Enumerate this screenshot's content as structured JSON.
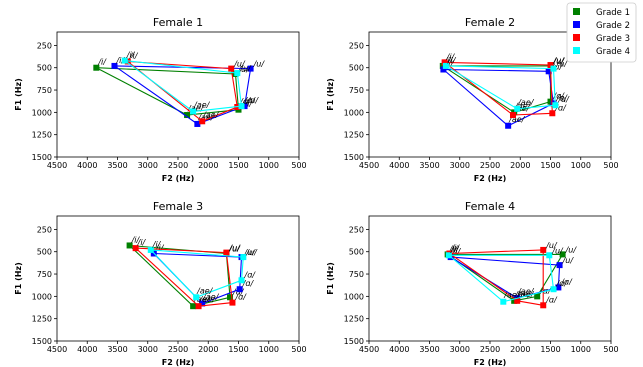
{
  "legend": {
    "items": [
      {
        "name": "Grade 1",
        "color": "#008000"
      },
      {
        "name": "Grade 2",
        "color": "#0000ff"
      },
      {
        "name": "Grade 3",
        "color": "#ff0000"
      },
      {
        "name": "Grade 4",
        "color": "#00ffff"
      }
    ]
  },
  "chart_data": [
    {
      "type": "scatter",
      "title": "Female 1",
      "xlabel": "F2 (Hz)",
      "ylabel": "F1 (Hz)",
      "xlim": [
        4500,
        500
      ],
      "ylim": [
        1500,
        100
      ],
      "xticks": [
        4500,
        4000,
        3500,
        3000,
        2500,
        2000,
        1500,
        1000,
        500
      ],
      "yticks": [
        250,
        500,
        750,
        1000,
        1250,
        1500
      ],
      "series": [
        {
          "name": "Grade 1",
          "color": "#008000",
          "points": [
            {
              "label": "/i/",
              "x": 3850,
              "y": 500
            },
            {
              "label": "/u/",
              "x": 1550,
              "y": 570
            },
            {
              "label": "/ɑ/",
              "x": 1500,
              "y": 970
            },
            {
              "label": "/ae/",
              "x": 2350,
              "y": 1030
            }
          ]
        },
        {
          "name": "Grade 2",
          "color": "#0000ff",
          "points": [
            {
              "label": "/i/",
              "x": 3550,
              "y": 480
            },
            {
              "label": "/u/",
              "x": 1300,
              "y": 510
            },
            {
              "label": "/ɑ/",
              "x": 1400,
              "y": 930
            },
            {
              "label": "/ae/",
              "x": 2180,
              "y": 1130
            }
          ]
        },
        {
          "name": "Grade 3",
          "color": "#ff0000",
          "points": [
            {
              "label": "/i/",
              "x": 3330,
              "y": 430
            },
            {
              "label": "/u/",
              "x": 1620,
              "y": 510
            },
            {
              "label": "/ɑ/",
              "x": 1520,
              "y": 940
            },
            {
              "label": "/ae/",
              "x": 2100,
              "y": 1100
            }
          ]
        },
        {
          "name": "Grade 4",
          "color": "#00ffff",
          "points": [
            {
              "label": "/i/",
              "x": 3380,
              "y": 420
            },
            {
              "label": "/u/",
              "x": 1520,
              "y": 560
            },
            {
              "label": "/ɑ/",
              "x": 1450,
              "y": 930
            },
            {
              "label": "/ae/",
              "x": 2250,
              "y": 990
            }
          ]
        }
      ]
    },
    {
      "type": "scatter",
      "title": "Female 2",
      "xlabel": "F2 (Hz)",
      "ylabel": "F1 (Hz)",
      "xlim": [
        4500,
        500
      ],
      "ylim": [
        1500,
        100
      ],
      "xticks": [
        4500,
        4000,
        3500,
        3000,
        2500,
        2000,
        1500,
        1000,
        500
      ],
      "yticks": [
        250,
        500,
        750,
        1000,
        1250,
        1500
      ],
      "series": [
        {
          "name": "Grade 1",
          "color": "#008000",
          "points": [
            {
              "label": "/i/",
              "x": 3280,
              "y": 480
            },
            {
              "label": "/u/",
              "x": 1500,
              "y": 480
            },
            {
              "label": "/ɑ/",
              "x": 1500,
              "y": 880
            },
            {
              "label": "/ae/",
              "x": 2100,
              "y": 1000
            }
          ]
        },
        {
          "name": "Grade 2",
          "color": "#0000ff",
          "points": [
            {
              "label": "/i/",
              "x": 3270,
              "y": 520
            },
            {
              "label": "/u/",
              "x": 1530,
              "y": 540
            },
            {
              "label": "/ɑ/",
              "x": 1450,
              "y": 900
            },
            {
              "label": "/ae/",
              "x": 2200,
              "y": 1150
            }
          ]
        },
        {
          "name": "Grade 3",
          "color": "#ff0000",
          "points": [
            {
              "label": "/i/",
              "x": 3250,
              "y": 440
            },
            {
              "label": "/u/",
              "x": 1500,
              "y": 470
            },
            {
              "label": "/ɑ/",
              "x": 1470,
              "y": 1010
            },
            {
              "label": "/ae/",
              "x": 2120,
              "y": 1030
            }
          ]
        },
        {
          "name": "Grade 4",
          "color": "#00ffff",
          "points": [
            {
              "label": "/i/",
              "x": 3230,
              "y": 480
            },
            {
              "label": "/u/",
              "x": 1450,
              "y": 510
            },
            {
              "label": "/ɑ/",
              "x": 1420,
              "y": 920
            },
            {
              "label": "/ae/",
              "x": 2050,
              "y": 960
            }
          ]
        }
      ]
    },
    {
      "type": "scatter",
      "title": "Female 3",
      "xlabel": "F2 (Hz)",
      "ylabel": "F1 (Hz)",
      "xlim": [
        4500,
        500
      ],
      "ylim": [
        1500,
        100
      ],
      "xticks": [
        4500,
        4000,
        3500,
        3000,
        2500,
        2000,
        1500,
        1000,
        500
      ],
      "yticks": [
        250,
        500,
        750,
        1000,
        1250,
        1500
      ],
      "series": [
        {
          "name": "Grade 1",
          "color": "#008000",
          "points": [
            {
              "label": "/i/",
              "x": 3300,
              "y": 430
            },
            {
              "label": "/u/",
              "x": 1700,
              "y": 520
            },
            {
              "label": "/ɑ/",
              "x": 1640,
              "y": 1010
            },
            {
              "label": "/ae/",
              "x": 2250,
              "y": 1110
            }
          ]
        },
        {
          "name": "Grade 2",
          "color": "#0000ff",
          "points": [
            {
              "label": "/i/",
              "x": 2900,
              "y": 520
            },
            {
              "label": "/u/",
              "x": 1450,
              "y": 560
            },
            {
              "label": "/ɑ/",
              "x": 1480,
              "y": 920
            },
            {
              "label": "/ae/",
              "x": 2100,
              "y": 1080
            }
          ]
        },
        {
          "name": "Grade 3",
          "color": "#ff0000",
          "points": [
            {
              "label": "/i/",
              "x": 3200,
              "y": 460
            },
            {
              "label": "/u/",
              "x": 1700,
              "y": 510
            },
            {
              "label": "/ɑ/",
              "x": 1600,
              "y": 1070
            },
            {
              "label": "/ae/",
              "x": 2160,
              "y": 1110
            }
          ]
        },
        {
          "name": "Grade 4",
          "color": "#00ffff",
          "points": [
            {
              "label": "/i/",
              "x": 2950,
              "y": 480
            },
            {
              "label": "/u/",
              "x": 1420,
              "y": 560
            },
            {
              "label": "/ɑ/",
              "x": 1450,
              "y": 820
            },
            {
              "label": "/ae/",
              "x": 2200,
              "y": 1010
            }
          ]
        }
      ]
    },
    {
      "type": "scatter",
      "title": "Female 4",
      "xlabel": "F2 (Hz)",
      "ylabel": "F1 (Hz)",
      "xlim": [
        4500,
        500
      ],
      "ylim": [
        1500,
        100
      ],
      "xticks": [
        4500,
        4000,
        3500,
        3000,
        2500,
        2000,
        1500,
        1000,
        500
      ],
      "yticks": [
        250,
        500,
        750,
        1000,
        1250,
        1500
      ],
      "series": [
        {
          "name": "Grade 1",
          "color": "#008000",
          "points": [
            {
              "label": "/i/",
              "x": 3200,
              "y": 530
            },
            {
              "label": "/u/",
              "x": 1300,
              "y": 530
            },
            {
              "label": "/ɑ/",
              "x": 1720,
              "y": 1000
            },
            {
              "label": "/ae/",
              "x": 2100,
              "y": 1050
            }
          ]
        },
        {
          "name": "Grade 2",
          "color": "#0000ff",
          "points": [
            {
              "label": "/i/",
              "x": 3150,
              "y": 560
            },
            {
              "label": "/u/",
              "x": 1350,
              "y": 650
            },
            {
              "label": "/ɑ/",
              "x": 1370,
              "y": 900
            },
            {
              "label": "/ae/",
              "x": 2050,
              "y": 1020
            }
          ]
        },
        {
          "name": "Grade 3",
          "color": "#ff0000",
          "points": [
            {
              "label": "/i/",
              "x": 3170,
              "y": 520
            },
            {
              "label": "/u/",
              "x": 1620,
              "y": 480
            },
            {
              "label": "/ɑ/",
              "x": 1620,
              "y": 1100
            },
            {
              "label": "/ae/",
              "x": 2050,
              "y": 1050
            }
          ]
        },
        {
          "name": "Grade 4",
          "color": "#00ffff",
          "points": [
            {
              "label": "/i/",
              "x": 3180,
              "y": 540
            },
            {
              "label": "/u/",
              "x": 1520,
              "y": 540
            },
            {
              "label": "/ɑ/",
              "x": 1450,
              "y": 920
            },
            {
              "label": "/ae/",
              "x": 2280,
              "y": 1060
            }
          ]
        }
      ]
    }
  ]
}
